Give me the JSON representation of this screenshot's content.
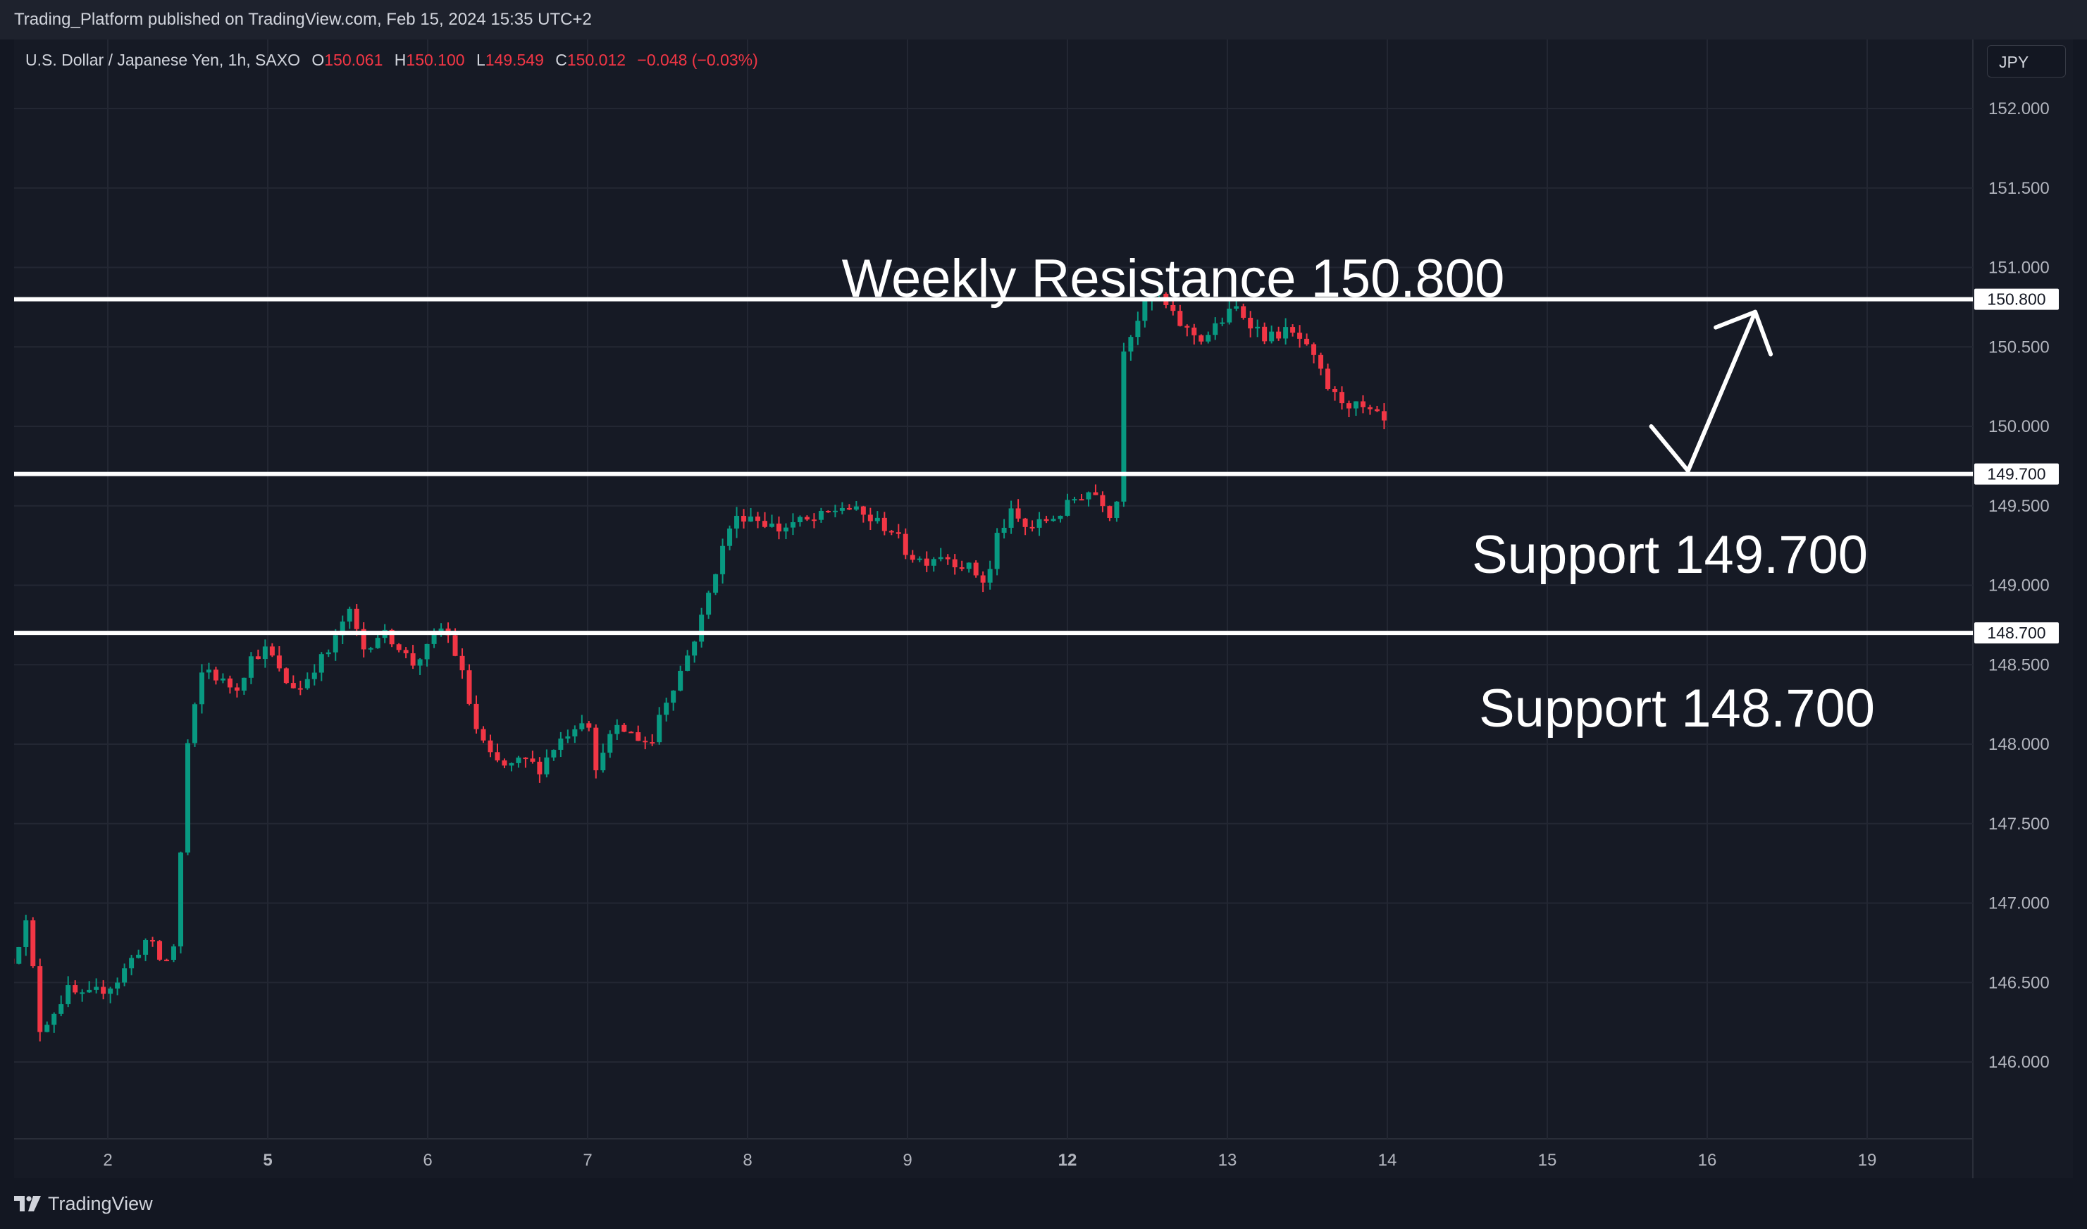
{
  "header": {
    "published": "Trading_Platform published on TradingView.com, Feb 15, 2024 15:35 UTC+2"
  },
  "legend": {
    "symbol": "U.S. Dollar / Japanese Yen, 1h, SAXO",
    "open_label": "O",
    "open": "150.061",
    "high_label": "H",
    "high": "150.100",
    "low_label": "L",
    "low": "149.549",
    "close_label": "C",
    "close": "150.012",
    "change": "−0.048 (−0.03%)"
  },
  "currency_button": "JPY",
  "footer": {
    "brand": "TradingView",
    "logo_icon": "tradingview-logo-icon"
  },
  "colors": {
    "up": "#089981",
    "down": "#f23645",
    "background": "#161a25",
    "grid": "#232733",
    "level_line": "#ffffff",
    "text": "#d1d4dc"
  },
  "chart_data": {
    "type": "candlestick",
    "ylim": [
      145.5,
      152.3
    ],
    "y_ticks": [
      "146.000",
      "146.500",
      "147.000",
      "147.500",
      "148.000",
      "148.500",
      "149.000",
      "149.500",
      "150.000",
      "150.500",
      "151.000",
      "151.500",
      "152.000"
    ],
    "x_tick_labels": [
      {
        "label": "2",
        "day": 1,
        "bold": false
      },
      {
        "label": "5",
        "day": 2,
        "bold": true
      },
      {
        "label": "6",
        "day": 3,
        "bold": false
      },
      {
        "label": "7",
        "day": 4,
        "bold": false
      },
      {
        "label": "8",
        "day": 5,
        "bold": false
      },
      {
        "label": "9",
        "day": 6,
        "bold": false
      },
      {
        "label": "12",
        "day": 7,
        "bold": true
      },
      {
        "label": "13",
        "day": 8,
        "bold": false
      },
      {
        "label": "14",
        "day": 9,
        "bold": false
      },
      {
        "label": "15",
        "day": 10,
        "bold": false
      },
      {
        "label": "16",
        "day": 11,
        "bold": false
      },
      {
        "label": "19",
        "day": 12,
        "bold": false
      }
    ],
    "levels": [
      {
        "name": "Weekly Resistance",
        "value": 150.8,
        "price_label": "150.800",
        "annotation": "Weekly Resistance 150.800"
      },
      {
        "name": "Support",
        "value": 149.7,
        "price_label": "149.700",
        "annotation": "Support 149.700"
      },
      {
        "name": "Support",
        "value": 148.7,
        "price_label": "148.700",
        "annotation": "Support 148.700"
      }
    ],
    "projection": [
      [
        10.65,
        150.0
      ],
      [
        10.88,
        149.72
      ],
      [
        11.3,
        150.72
      ]
    ],
    "path": [
      [
        0.4,
        146.65
      ],
      [
        0.5,
        146.9
      ],
      [
        0.57,
        146.2
      ],
      [
        0.65,
        146.3
      ],
      [
        0.75,
        146.45
      ],
      [
        0.85,
        146.4
      ],
      [
        0.95,
        146.45
      ],
      [
        1.05,
        146.5
      ],
      [
        1.15,
        146.65
      ],
      [
        1.25,
        146.78
      ],
      [
        1.35,
        146.6
      ],
      [
        1.42,
        146.75
      ],
      [
        1.5,
        148.0
      ],
      [
        1.6,
        148.5
      ],
      [
        1.7,
        148.4
      ],
      [
        1.8,
        148.35
      ],
      [
        1.9,
        148.55
      ],
      [
        2.0,
        148.6
      ],
      [
        2.1,
        148.4
      ],
      [
        2.2,
        148.35
      ],
      [
        2.3,
        148.5
      ],
      [
        2.4,
        148.6
      ],
      [
        2.5,
        148.85
      ],
      [
        2.6,
        148.6
      ],
      [
        2.7,
        148.7
      ],
      [
        2.8,
        148.65
      ],
      [
        2.9,
        148.5
      ],
      [
        3.0,
        148.6
      ],
      [
        3.1,
        148.75
      ],
      [
        3.2,
        148.5
      ],
      [
        3.3,
        148.1
      ],
      [
        3.4,
        147.9
      ],
      [
        3.5,
        147.85
      ],
      [
        3.6,
        147.9
      ],
      [
        3.7,
        147.85
      ],
      [
        3.8,
        148.0
      ],
      [
        3.9,
        148.1
      ],
      [
        4.0,
        148.2
      ],
      [
        4.05,
        147.8
      ],
      [
        4.1,
        148.0
      ],
      [
        4.2,
        148.1
      ],
      [
        4.3,
        148.05
      ],
      [
        4.4,
        148.0
      ],
      [
        4.45,
        148.2
      ],
      [
        4.6,
        148.5
      ],
      [
        4.7,
        148.75
      ],
      [
        4.8,
        149.1
      ],
      [
        4.9,
        149.4
      ],
      [
        5.0,
        149.45
      ],
      [
        5.1,
        149.4
      ],
      [
        5.2,
        149.35
      ],
      [
        5.3,
        149.4
      ],
      [
        5.4,
        149.4
      ],
      [
        5.5,
        149.45
      ],
      [
        5.6,
        149.5
      ],
      [
        5.7,
        149.45
      ],
      [
        5.8,
        149.4
      ],
      [
        5.9,
        149.35
      ],
      [
        6.0,
        149.2
      ],
      [
        6.1,
        149.15
      ],
      [
        6.2,
        149.2
      ],
      [
        6.3,
        149.15
      ],
      [
        6.4,
        149.1
      ],
      [
        6.5,
        149.0
      ],
      [
        6.55,
        149.3
      ],
      [
        6.65,
        149.45
      ],
      [
        6.75,
        149.35
      ],
      [
        6.85,
        149.4
      ],
      [
        6.95,
        149.45
      ],
      [
        7.05,
        149.55
      ],
      [
        7.15,
        149.6
      ],
      [
        7.25,
        149.5
      ],
      [
        7.3,
        149.35
      ],
      [
        7.35,
        150.5
      ],
      [
        7.45,
        150.7
      ],
      [
        7.55,
        150.85
      ],
      [
        7.65,
        150.7
      ],
      [
        7.75,
        150.6
      ],
      [
        7.85,
        150.55
      ],
      [
        7.95,
        150.65
      ],
      [
        8.05,
        150.75
      ],
      [
        8.15,
        150.65
      ],
      [
        8.25,
        150.55
      ],
      [
        8.35,
        150.6
      ],
      [
        8.45,
        150.55
      ],
      [
        8.55,
        150.4
      ],
      [
        8.65,
        150.2
      ],
      [
        8.75,
        150.15
      ],
      [
        8.85,
        150.1
      ],
      [
        8.95,
        150.05
      ],
      [
        9.0,
        150.0
      ]
    ]
  }
}
